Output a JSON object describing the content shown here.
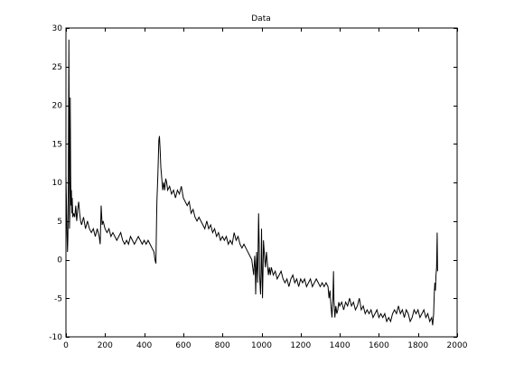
{
  "chart_data": {
    "type": "line",
    "title": "Data",
    "xlabel": "",
    "ylabel": "",
    "xlim": [
      0,
      2000
    ],
    "ylim": [
      -10,
      30
    ],
    "xticks": [
      0,
      200,
      400,
      600,
      800,
      1000,
      1200,
      1400,
      1600,
      1800,
      2000
    ],
    "yticks": [
      -10,
      -5,
      0,
      5,
      10,
      15,
      20,
      25,
      30
    ],
    "grid": false,
    "legend": "none",
    "line_color": "#000000",
    "series": [
      {
        "points": [
          [
            0,
            11
          ],
          [
            5,
            4
          ],
          [
            8,
            1
          ],
          [
            10,
            3
          ],
          [
            12,
            10
          ],
          [
            15,
            28.5
          ],
          [
            17,
            15
          ],
          [
            18,
            4
          ],
          [
            20,
            6
          ],
          [
            22,
            21
          ],
          [
            24,
            11
          ],
          [
            26,
            7
          ],
          [
            28,
            9
          ],
          [
            30,
            6
          ],
          [
            32,
            8
          ],
          [
            35,
            5.5
          ],
          [
            40,
            6
          ],
          [
            45,
            5.5
          ],
          [
            50,
            7
          ],
          [
            55,
            5
          ],
          [
            60,
            6.5
          ],
          [
            65,
            7.5
          ],
          [
            70,
            6
          ],
          [
            75,
            5
          ],
          [
            80,
            4.5
          ],
          [
            90,
            5.5
          ],
          [
            100,
            4
          ],
          [
            110,
            5
          ],
          [
            120,
            4
          ],
          [
            130,
            3.5
          ],
          [
            140,
            4
          ],
          [
            150,
            3
          ],
          [
            160,
            4
          ],
          [
            170,
            3
          ],
          [
            175,
            2
          ],
          [
            180,
            7
          ],
          [
            185,
            4.5
          ],
          [
            190,
            5
          ],
          [
            200,
            4
          ],
          [
            210,
            3.5
          ],
          [
            220,
            4
          ],
          [
            230,
            3
          ],
          [
            240,
            3.5
          ],
          [
            250,
            3
          ],
          [
            260,
            2.5
          ],
          [
            270,
            3
          ],
          [
            280,
            3.5
          ],
          [
            290,
            2.5
          ],
          [
            300,
            2
          ],
          [
            310,
            2.5
          ],
          [
            320,
            2
          ],
          [
            330,
            3
          ],
          [
            340,
            2.5
          ],
          [
            350,
            2
          ],
          [
            360,
            2.5
          ],
          [
            370,
            3
          ],
          [
            380,
            2.5
          ],
          [
            390,
            2
          ],
          [
            400,
            2.5
          ],
          [
            410,
            2
          ],
          [
            420,
            2.5
          ],
          [
            430,
            2
          ],
          [
            440,
            1.5
          ],
          [
            450,
            1
          ],
          [
            455,
            0
          ],
          [
            460,
            -0.5
          ],
          [
            462,
            3
          ],
          [
            465,
            7.5
          ],
          [
            470,
            11
          ],
          [
            475,
            15.5
          ],
          [
            478,
            16
          ],
          [
            482,
            14
          ],
          [
            485,
            12
          ],
          [
            490,
            10.5
          ],
          [
            495,
            9
          ],
          [
            500,
            10
          ],
          [
            505,
            9
          ],
          [
            510,
            10.5
          ],
          [
            515,
            10
          ],
          [
            520,
            9
          ],
          [
            530,
            9.5
          ],
          [
            540,
            8.5
          ],
          [
            550,
            9
          ],
          [
            560,
            8
          ],
          [
            570,
            9
          ],
          [
            580,
            8.5
          ],
          [
            590,
            9.5
          ],
          [
            600,
            8
          ],
          [
            610,
            7.5
          ],
          [
            620,
            7
          ],
          [
            630,
            7.5
          ],
          [
            640,
            6
          ],
          [
            650,
            6.5
          ],
          [
            660,
            5.5
          ],
          [
            670,
            5
          ],
          [
            680,
            5.5
          ],
          [
            690,
            5
          ],
          [
            700,
            4.5
          ],
          [
            710,
            4
          ],
          [
            720,
            5
          ],
          [
            730,
            4
          ],
          [
            740,
            4.5
          ],
          [
            750,
            3.5
          ],
          [
            760,
            4
          ],
          [
            770,
            3
          ],
          [
            780,
            3.5
          ],
          [
            790,
            2.5
          ],
          [
            800,
            3
          ],
          [
            810,
            2.5
          ],
          [
            820,
            3
          ],
          [
            830,
            2
          ],
          [
            840,
            2.5
          ],
          [
            850,
            2
          ],
          [
            860,
            3.5
          ],
          [
            870,
            2.5
          ],
          [
            880,
            3
          ],
          [
            890,
            2
          ],
          [
            900,
            1.5
          ],
          [
            910,
            2
          ],
          [
            920,
            1.5
          ],
          [
            930,
            1
          ],
          [
            940,
            0.5
          ],
          [
            950,
            0
          ],
          [
            955,
            -1
          ],
          [
            960,
            -2
          ],
          [
            965,
            0.5
          ],
          [
            968,
            -1
          ],
          [
            970,
            -4.5
          ],
          [
            975,
            1
          ],
          [
            980,
            -3
          ],
          [
            985,
            6
          ],
          [
            988,
            2
          ],
          [
            990,
            -2
          ],
          [
            995,
            -4.5
          ],
          [
            998,
            -1
          ],
          [
            1000,
            4
          ],
          [
            1003,
            -2
          ],
          [
            1005,
            -5
          ],
          [
            1008,
            -1
          ],
          [
            1010,
            2.5
          ],
          [
            1015,
            0.5
          ],
          [
            1020,
            -1
          ],
          [
            1025,
            1
          ],
          [
            1030,
            -0.5
          ],
          [
            1035,
            -2
          ],
          [
            1040,
            -1
          ],
          [
            1045,
            -2
          ],
          [
            1050,
            -1
          ],
          [
            1060,
            -2
          ],
          [
            1070,
            -1.5
          ],
          [
            1080,
            -2.5
          ],
          [
            1090,
            -2
          ],
          [
            1100,
            -1.5
          ],
          [
            1110,
            -2.5
          ],
          [
            1120,
            -3
          ],
          [
            1130,
            -2.5
          ],
          [
            1140,
            -3.5
          ],
          [
            1150,
            -2.5
          ],
          [
            1160,
            -2
          ],
          [
            1170,
            -3
          ],
          [
            1180,
            -2.5
          ],
          [
            1190,
            -3.5
          ],
          [
            1200,
            -2.5
          ],
          [
            1210,
            -3
          ],
          [
            1220,
            -2.5
          ],
          [
            1230,
            -3.5
          ],
          [
            1240,
            -3
          ],
          [
            1250,
            -2.5
          ],
          [
            1260,
            -3.5
          ],
          [
            1270,
            -3
          ],
          [
            1280,
            -2.5
          ],
          [
            1290,
            -3
          ],
          [
            1300,
            -3.5
          ],
          [
            1310,
            -3
          ],
          [
            1320,
            -3.5
          ],
          [
            1330,
            -3
          ],
          [
            1340,
            -3.5
          ],
          [
            1345,
            -5
          ],
          [
            1350,
            -4
          ],
          [
            1355,
            -6
          ],
          [
            1360,
            -7.5
          ],
          [
            1365,
            -5
          ],
          [
            1368,
            -1.5
          ],
          [
            1370,
            -5
          ],
          [
            1375,
            -7.5
          ],
          [
            1380,
            -6
          ],
          [
            1385,
            -7
          ],
          [
            1390,
            -6.5
          ],
          [
            1395,
            -5.5
          ],
          [
            1400,
            -6
          ],
          [
            1410,
            -5.5
          ],
          [
            1420,
            -6.5
          ],
          [
            1430,
            -5.5
          ],
          [
            1440,
            -6
          ],
          [
            1450,
            -5
          ],
          [
            1460,
            -6
          ],
          [
            1470,
            -5.5
          ],
          [
            1480,
            -6.5
          ],
          [
            1490,
            -6
          ],
          [
            1500,
            -5
          ],
          [
            1510,
            -6.5
          ],
          [
            1520,
            -6
          ],
          [
            1530,
            -7
          ],
          [
            1540,
            -6.5
          ],
          [
            1550,
            -7
          ],
          [
            1560,
            -6.5
          ],
          [
            1570,
            -7.5
          ],
          [
            1580,
            -7
          ],
          [
            1590,
            -6.5
          ],
          [
            1600,
            -7.5
          ],
          [
            1610,
            -7
          ],
          [
            1620,
            -7.5
          ],
          [
            1630,
            -7
          ],
          [
            1640,
            -8
          ],
          [
            1650,
            -7.5
          ],
          [
            1660,
            -8
          ],
          [
            1670,
            -7
          ],
          [
            1680,
            -6.5
          ],
          [
            1690,
            -7
          ],
          [
            1700,
            -6
          ],
          [
            1710,
            -7
          ],
          [
            1720,
            -6.5
          ],
          [
            1730,
            -7.5
          ],
          [
            1740,
            -6.5
          ],
          [
            1750,
            -7
          ],
          [
            1760,
            -8
          ],
          [
            1770,
            -7.5
          ],
          [
            1780,
            -6.5
          ],
          [
            1790,
            -7
          ],
          [
            1800,
            -6.5
          ],
          [
            1810,
            -7.5
          ],
          [
            1820,
            -7
          ],
          [
            1830,
            -6.5
          ],
          [
            1840,
            -7.5
          ],
          [
            1850,
            -7
          ],
          [
            1860,
            -8
          ],
          [
            1870,
            -7.5
          ],
          [
            1875,
            -8.5
          ],
          [
            1880,
            -7
          ],
          [
            1883,
            -4.5
          ],
          [
            1886,
            -3
          ],
          [
            1889,
            -4
          ],
          [
            1892,
            -2
          ],
          [
            1895,
            -1
          ],
          [
            1898,
            3.5
          ],
          [
            1900,
            -1.5
          ]
        ]
      }
    ]
  }
}
